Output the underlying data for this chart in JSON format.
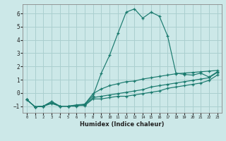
{
  "title": "",
  "xlabel": "Humidex (Indice chaleur)",
  "background_color": "#cce8e8",
  "grid_color": "#aacfcf",
  "line_color": "#1a7a6e",
  "xlim": [
    -0.5,
    23.5
  ],
  "ylim": [
    -1.5,
    6.7
  ],
  "yticks": [
    -1,
    0,
    1,
    2,
    3,
    4,
    5,
    6
  ],
  "xticks": [
    0,
    1,
    2,
    3,
    4,
    5,
    6,
    7,
    8,
    9,
    10,
    11,
    12,
    13,
    14,
    15,
    16,
    17,
    18,
    19,
    20,
    21,
    22,
    23
  ],
  "curves": [
    {
      "x": [
        0,
        1,
        2,
        3,
        4,
        5,
        6,
        7,
        8,
        9,
        10,
        11,
        12,
        13,
        14,
        15,
        16,
        17,
        18,
        19,
        20,
        21,
        22,
        23
      ],
      "y": [
        -0.5,
        -1.05,
        -1.0,
        -0.65,
        -1.0,
        -1.0,
        -1.0,
        -0.85,
        -0.2,
        1.5,
        2.85,
        4.5,
        6.1,
        6.35,
        5.65,
        6.1,
        5.8,
        4.3,
        1.5,
        1.4,
        1.35,
        1.5,
        1.2,
        1.6
      ]
    },
    {
      "x": [
        0,
        1,
        2,
        3,
        4,
        5,
        6,
        7,
        8,
        9,
        10,
        11,
        12,
        13,
        14,
        15,
        16,
        17,
        18,
        19,
        20,
        21,
        22,
        23
      ],
      "y": [
        -0.5,
        -1.05,
        -1.0,
        -0.65,
        -1.0,
        -1.0,
        -0.9,
        -0.85,
        -0.05,
        0.3,
        0.55,
        0.7,
        0.85,
        0.9,
        1.05,
        1.15,
        1.25,
        1.35,
        1.45,
        1.5,
        1.55,
        1.6,
        1.65,
        1.7
      ]
    },
    {
      "x": [
        0,
        1,
        2,
        3,
        4,
        5,
        6,
        7,
        8,
        9,
        10,
        11,
        12,
        13,
        14,
        15,
        16,
        17,
        18,
        19,
        20,
        21,
        22,
        23
      ],
      "y": [
        -0.5,
        -1.05,
        -1.0,
        -0.75,
        -1.0,
        -1.0,
        -0.95,
        -0.9,
        -0.35,
        -0.25,
        -0.15,
        -0.05,
        0.05,
        0.15,
        0.25,
        0.45,
        0.55,
        0.65,
        0.75,
        0.85,
        0.95,
        1.05,
        1.15,
        1.55
      ]
    },
    {
      "x": [
        0,
        1,
        2,
        3,
        4,
        5,
        6,
        7,
        8,
        9,
        10,
        11,
        12,
        13,
        14,
        15,
        16,
        17,
        18,
        19,
        20,
        21,
        22,
        23
      ],
      "y": [
        -0.5,
        -1.05,
        -1.0,
        -0.8,
        -1.0,
        -1.0,
        -0.95,
        -0.95,
        -0.45,
        -0.45,
        -0.35,
        -0.25,
        -0.25,
        -0.15,
        -0.05,
        0.05,
        0.15,
        0.35,
        0.45,
        0.55,
        0.65,
        0.75,
        0.95,
        1.35
      ]
    }
  ]
}
